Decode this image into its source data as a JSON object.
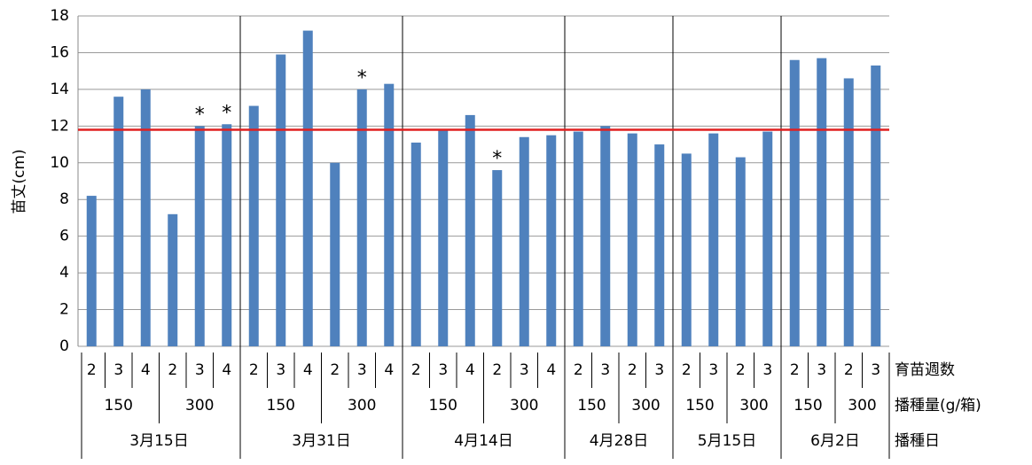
{
  "chart_data": {
    "type": "bar",
    "y_label": "苗丈(cm)",
    "ylim": [
      0,
      18
    ],
    "yticks": [
      0,
      2,
      4,
      6,
      8,
      10,
      12,
      14,
      16,
      18
    ],
    "grid": true,
    "level_names": [
      "育苗週数",
      "播種量(g/箱)",
      "播種日"
    ],
    "category_groups": [
      {
        "label": "3月15日",
        "rates": [
          {
            "label": "150",
            "weeks": [
              "2",
              "3",
              "4"
            ]
          },
          {
            "label": "300",
            "weeks": [
              "2",
              "3",
              "4"
            ]
          }
        ]
      },
      {
        "label": "3月31日",
        "rates": [
          {
            "label": "150",
            "weeks": [
              "2",
              "3",
              "4"
            ]
          },
          {
            "label": "300",
            "weeks": [
              "2",
              "3",
              "4"
            ]
          }
        ]
      },
      {
        "label": "4月14日",
        "rates": [
          {
            "label": "150",
            "weeks": [
              "2",
              "3",
              "4"
            ]
          },
          {
            "label": "300",
            "weeks": [
              "2",
              "3",
              "4"
            ]
          }
        ]
      },
      {
        "label": "4月28日",
        "rates": [
          {
            "label": "150",
            "weeks": [
              "2",
              "3"
            ]
          },
          {
            "label": "300",
            "weeks": [
              "2",
              "3"
            ]
          }
        ]
      },
      {
        "label": "5月15日",
        "rates": [
          {
            "label": "150",
            "weeks": [
              "2",
              "3"
            ]
          },
          {
            "label": "300",
            "weeks": [
              "2",
              "3"
            ]
          }
        ]
      },
      {
        "label": "6月2日",
        "rates": [
          {
            "label": "150",
            "weeks": [
              "2",
              "3"
            ]
          },
          {
            "label": "300",
            "weeks": [
              "2",
              "3"
            ]
          }
        ]
      }
    ],
    "series": [
      {
        "color": "#4f81bd",
        "values": [
          8.2,
          13.6,
          14.0,
          7.2,
          12.0,
          12.1,
          13.1,
          15.9,
          17.2,
          10.0,
          14.0,
          14.3,
          11.1,
          11.8,
          12.6,
          9.6,
          11.4,
          11.5,
          11.7,
          12.0,
          11.6,
          11.0,
          10.5,
          11.6,
          10.3,
          11.7,
          15.6,
          15.7,
          14.6,
          15.3
        ],
        "markers": [
          null,
          null,
          null,
          null,
          "*",
          "*",
          null,
          null,
          null,
          null,
          "*",
          null,
          null,
          null,
          null,
          "*",
          null,
          null,
          null,
          null,
          null,
          null,
          null,
          null,
          null,
          null,
          null,
          null,
          null,
          null
        ]
      }
    ],
    "reference_line": {
      "value": 11.8,
      "color": "#e02020"
    }
  }
}
